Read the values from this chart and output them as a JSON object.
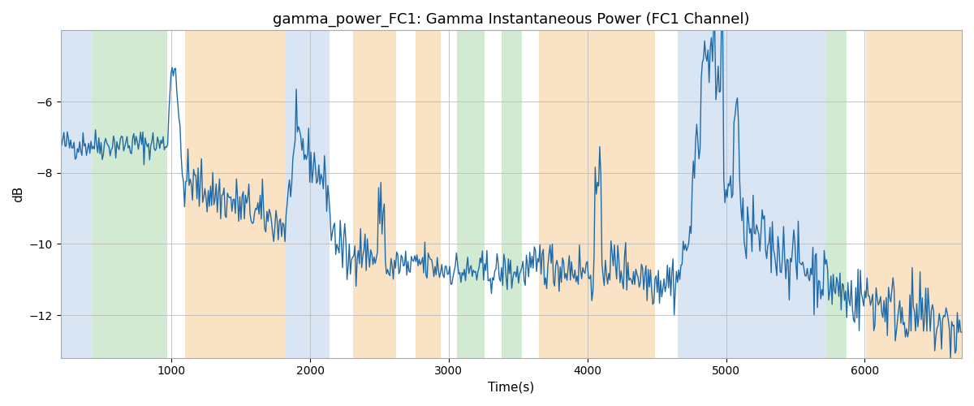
{
  "title": "gamma_power_FC1: Gamma Instantaneous Power (FC1 Channel)",
  "xlabel": "Time(s)",
  "ylabel": "dB",
  "xlim": [
    200,
    6700
  ],
  "ylim": [
    -13.2,
    -4.0
  ],
  "yticks": [
    -12,
    -10,
    -8,
    -6
  ],
  "xticks": [
    1000,
    2000,
    3000,
    4000,
    5000,
    6000
  ],
  "line_color": "#1f6aa8",
  "line_width": 1.0,
  "bg_color": "#ffffff",
  "grid_color": "#bbbbbb",
  "title_fontsize": 13,
  "label_fontsize": 11,
  "colored_regions": [
    {
      "xmin": 200,
      "xmax": 430,
      "color": "#aec6e8",
      "alpha": 0.45
    },
    {
      "xmin": 430,
      "xmax": 970,
      "color": "#90c990",
      "alpha": 0.4
    },
    {
      "xmin": 970,
      "xmax": 1100,
      "color": "#ffffff",
      "alpha": 0.0
    },
    {
      "xmin": 1100,
      "xmax": 1820,
      "color": "#f5c98a",
      "alpha": 0.5
    },
    {
      "xmin": 1820,
      "xmax": 2140,
      "color": "#aec6e8",
      "alpha": 0.45
    },
    {
      "xmin": 2140,
      "xmax": 2310,
      "color": "#ffffff",
      "alpha": 0.0
    },
    {
      "xmin": 2310,
      "xmax": 2620,
      "color": "#f5c98a",
      "alpha": 0.5
    },
    {
      "xmin": 2620,
      "xmax": 2760,
      "color": "#ffffff",
      "alpha": 0.0
    },
    {
      "xmin": 2760,
      "xmax": 2940,
      "color": "#f5c98a",
      "alpha": 0.5
    },
    {
      "xmin": 2940,
      "xmax": 3060,
      "color": "#ffffff",
      "alpha": 0.0
    },
    {
      "xmin": 3060,
      "xmax": 3260,
      "color": "#90c990",
      "alpha": 0.4
    },
    {
      "xmin": 3260,
      "xmax": 3380,
      "color": "#ffffff",
      "alpha": 0.0
    },
    {
      "xmin": 3380,
      "xmax": 3530,
      "color": "#90c990",
      "alpha": 0.4
    },
    {
      "xmin": 3530,
      "xmax": 3650,
      "color": "#ffffff",
      "alpha": 0.0
    },
    {
      "xmin": 3650,
      "xmax": 4490,
      "color": "#f5c98a",
      "alpha": 0.5
    },
    {
      "xmin": 4490,
      "xmax": 4650,
      "color": "#ffffff",
      "alpha": 0.0
    },
    {
      "xmin": 4650,
      "xmax": 5720,
      "color": "#aec6e8",
      "alpha": 0.45
    },
    {
      "xmin": 5720,
      "xmax": 5870,
      "color": "#90c990",
      "alpha": 0.4
    },
    {
      "xmin": 5870,
      "xmax": 6010,
      "color": "#ffffff",
      "alpha": 0.0
    },
    {
      "xmin": 6010,
      "xmax": 6700,
      "color": "#f5c98a",
      "alpha": 0.5
    }
  ],
  "seed": 42,
  "n_points": 800
}
